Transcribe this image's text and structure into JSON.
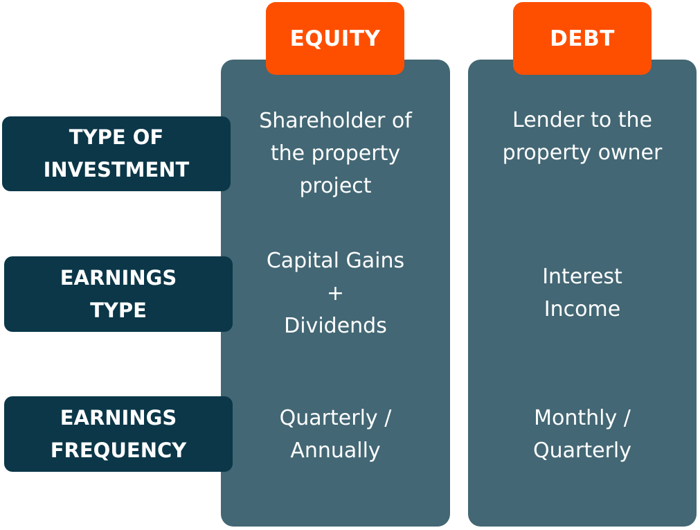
{
  "columns": {
    "equity": {
      "header": "EQUITY",
      "type_of_investment": [
        "Shareholder of",
        "the property",
        "project"
      ],
      "earnings_type": [
        "Capital Gains",
        "+",
        "Dividends"
      ],
      "earnings_frequency": [
        "Quarterly /",
        "Annually"
      ]
    },
    "debt": {
      "header": "DEBT",
      "type_of_investment": [
        "Lender to the",
        "property owner"
      ],
      "earnings_type": [
        "Interest",
        "Income"
      ],
      "earnings_frequency": [
        "Monthly /",
        "Quarterly"
      ]
    }
  },
  "rows": [
    {
      "label": [
        "TYPE OF",
        "INVESTMENT"
      ]
    },
    {
      "label": [
        "EARNINGS",
        "TYPE"
      ]
    },
    {
      "label": [
        "EARNINGS",
        "FREQUENCY"
      ]
    }
  ],
  "colors": {
    "header": "#fe4f00",
    "column": "#436774",
    "row_label": "#0b3748",
    "text": "#ffffff"
  }
}
